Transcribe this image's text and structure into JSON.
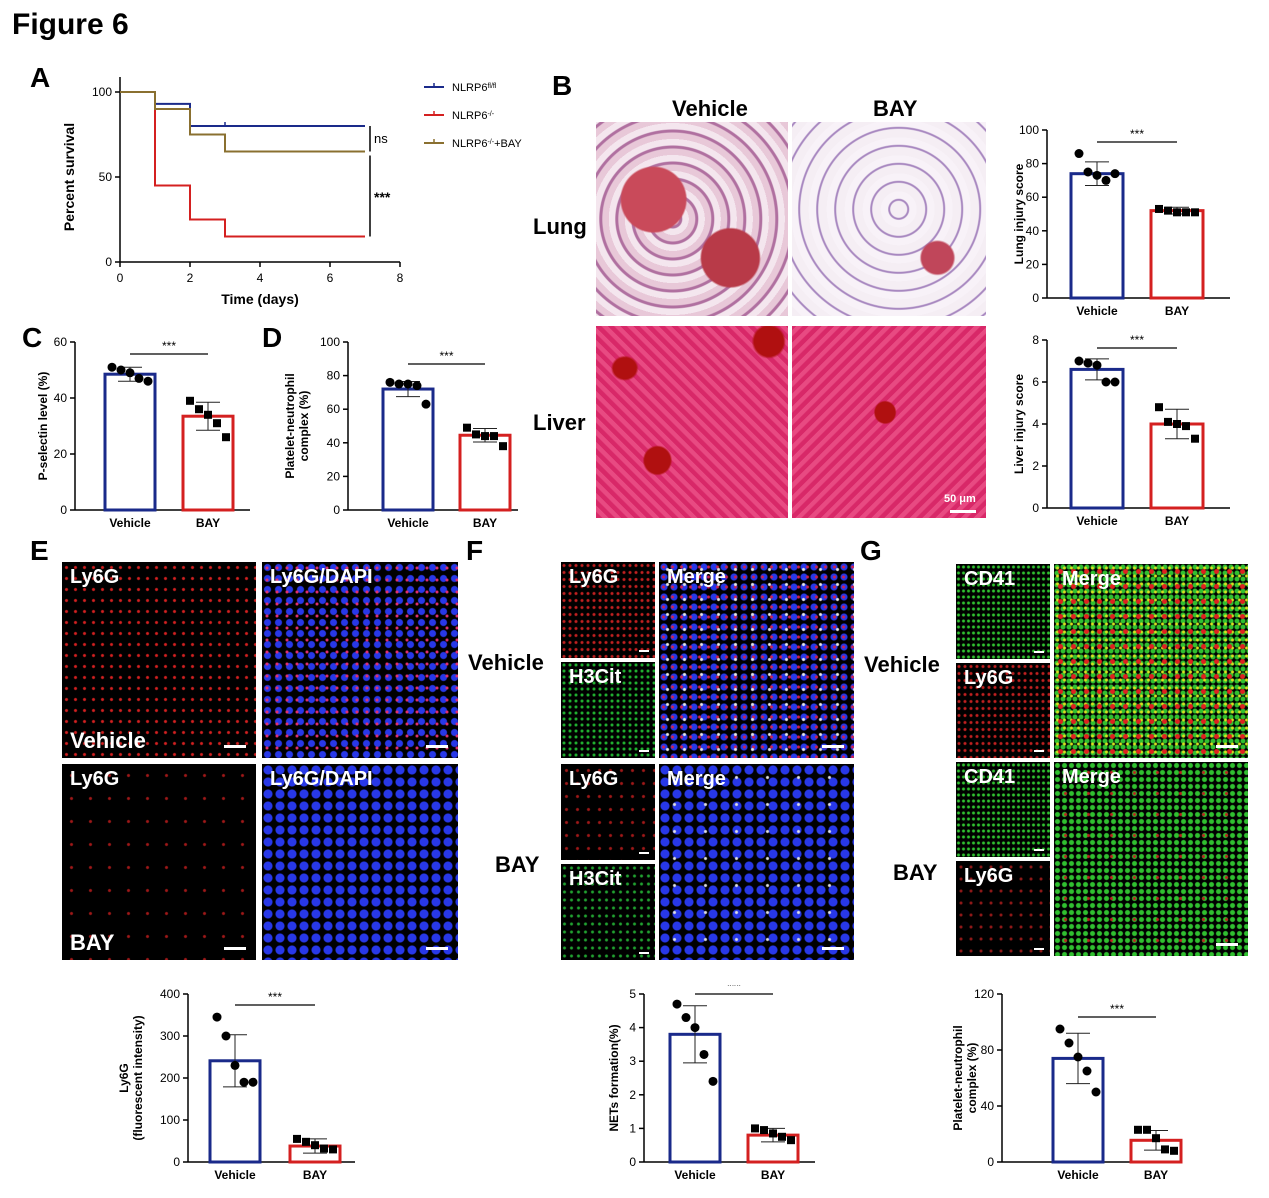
{
  "figure_title": "Figure 6",
  "panel_labels": {
    "A": "A",
    "B": "B",
    "C": "C",
    "D": "D",
    "E": "E",
    "F": "F",
    "G": "G"
  },
  "colors": {
    "blue": "#1a2a8a",
    "red": "#d42020",
    "olive": "#8a7030",
    "black": "#000000"
  },
  "panelB": {
    "col_labels": [
      "Vehicle",
      "BAY"
    ],
    "row_labels": [
      "Lung",
      "Liver"
    ],
    "scale_bar": "50 μm"
  },
  "panelE": {
    "tiles": [
      {
        "label": "Ly6G",
        "bottom": "Vehicle"
      },
      {
        "label": "Ly6G/DAPI",
        "bottom": ""
      },
      {
        "label": "Ly6G",
        "bottom": "BAY"
      },
      {
        "label": "Ly6G/DAPI",
        "bottom": ""
      }
    ]
  },
  "panelF": {
    "row_labels": [
      "Vehicle",
      "BAY"
    ],
    "tiles": [
      "Ly6G",
      "H3Cit",
      "Merge",
      "Ly6G",
      "H3Cit",
      "Merge"
    ]
  },
  "panelG": {
    "row_labels": [
      "Vehicle",
      "BAY"
    ],
    "tiles": [
      "CD41",
      "Ly6G",
      "Merge",
      "CD41",
      "Ly6G",
      "Merge"
    ]
  },
  "chart_data": [
    {
      "id": "A",
      "type": "line",
      "subtype": "kaplan-meier",
      "xlabel": "Time (days)",
      "ylabel": "Percent survival",
      "xlim": [
        0,
        8
      ],
      "ylim": [
        0,
        100
      ],
      "xticks": [
        "0",
        "2",
        "4",
        "6",
        "8"
      ],
      "yticks": [
        "0",
        "50",
        "100"
      ],
      "series": [
        {
          "name": "NLRP6",
          "sup": "fl/fl",
          "suffix": "",
          "color": "#1a2a8a",
          "steps": [
            [
              0,
              100
            ],
            [
              1,
              100
            ],
            [
              1,
              93
            ],
            [
              2,
              93
            ],
            [
              2,
              80
            ],
            [
              7,
              80
            ]
          ]
        },
        {
          "name": "NLRP6",
          "sup": "-/-",
          "suffix": "",
          "color": "#d42020",
          "steps": [
            [
              0,
              100
            ],
            [
              1,
              100
            ],
            [
              1,
              45
            ],
            [
              2,
              45
            ],
            [
              2,
              25
            ],
            [
              3,
              25
            ],
            [
              3,
              15
            ],
            [
              7,
              15
            ]
          ]
        },
        {
          "name": "NLRP6",
          "sup": "-/-",
          "suffix": "+BAY",
          "color": "#8a7030",
          "steps": [
            [
              0,
              100
            ],
            [
              1,
              100
            ],
            [
              1,
              90
            ],
            [
              2,
              90
            ],
            [
              2,
              75
            ],
            [
              3,
              75
            ],
            [
              3,
              65
            ],
            [
              7,
              65
            ]
          ]
        }
      ],
      "annotations": [
        "ns",
        "***"
      ]
    },
    {
      "id": "B-lung",
      "type": "bar",
      "ylabel": "Lung injury score",
      "categories": [
        "Vehicle",
        "BAY"
      ],
      "values": [
        74,
        52
      ],
      "errors": [
        7,
        2
      ],
      "ylim": [
        0,
        100
      ],
      "yticks": [
        "0",
        "20",
        "40",
        "60",
        "80",
        "100"
      ],
      "points": [
        [
          86,
          75,
          73,
          70,
          74
        ],
        [
          53,
          52,
          51,
          51,
          51
        ]
      ],
      "markers": [
        "circle",
        "square"
      ],
      "significance": "***"
    },
    {
      "id": "B-liver",
      "type": "bar",
      "ylabel": "Liver injury score",
      "categories": [
        "Vehicle",
        "BAY"
      ],
      "values": [
        6.6,
        4.0
      ],
      "errors": [
        0.5,
        0.7
      ],
      "ylim": [
        0,
        8
      ],
      "yticks": [
        "0",
        "2",
        "4",
        "6",
        "8"
      ],
      "points": [
        [
          7.0,
          6.9,
          6.8,
          6.0,
          6.0
        ],
        [
          4.8,
          4.1,
          4.0,
          3.9,
          3.3
        ]
      ],
      "markers": [
        "circle",
        "square"
      ],
      "significance": "***"
    },
    {
      "id": "C",
      "type": "bar",
      "ylabel": "P-selectin level (%)",
      "categories": [
        "Vehicle",
        "BAY"
      ],
      "values": [
        48.5,
        33.5
      ],
      "errors": [
        2.5,
        5.0
      ],
      "ylim": [
        0,
        60
      ],
      "yticks": [
        "0",
        "20",
        "40",
        "60"
      ],
      "points": [
        [
          51,
          50,
          49,
          47,
          46
        ],
        [
          39,
          36,
          34,
          31,
          26
        ]
      ],
      "markers": [
        "circle",
        "square"
      ],
      "significance": "***"
    },
    {
      "id": "D",
      "type": "bar",
      "ylabel": "Platelet-neutrophil complex (%)",
      "categories": [
        "Vehicle",
        "BAY"
      ],
      "values": [
        72,
        44.5
      ],
      "errors": [
        4.5,
        4
      ],
      "ylim": [
        0,
        100
      ],
      "yticks": [
        "0",
        "20",
        "40",
        "60",
        "80",
        "100"
      ],
      "points": [
        [
          76,
          75,
          75,
          74,
          63
        ],
        [
          49,
          45,
          44,
          44,
          38
        ]
      ],
      "markers": [
        "circle",
        "square"
      ],
      "significance": "***"
    },
    {
      "id": "E",
      "type": "bar",
      "ylabel": "Ly6G (fluorescent intensity)",
      "categories": [
        "Vehicle",
        "BAY"
      ],
      "values": [
        241,
        38
      ],
      "errors": [
        62,
        17
      ],
      "ylim": [
        0,
        400
      ],
      "yticks": [
        "0",
        "100",
        "200",
        "300",
        "400"
      ],
      "points": [
        [
          345,
          300,
          230,
          190,
          190
        ],
        [
          55,
          48,
          40,
          32,
          30
        ]
      ],
      "markers": [
        "circle",
        "square"
      ],
      "significance": "***"
    },
    {
      "id": "F",
      "type": "bar",
      "ylabel": "NETs formation(%)",
      "categories": [
        "Vehicle",
        "BAY"
      ],
      "values": [
        3.8,
        0.8
      ],
      "errors": [
        0.85,
        0.2
      ],
      "ylim": [
        0,
        5
      ],
      "yticks": [
        "0",
        "1",
        "2",
        "3",
        "4",
        "5"
      ],
      "points": [
        [
          4.7,
          4.3,
          4.0,
          3.2,
          2.4
        ],
        [
          1.0,
          0.95,
          0.85,
          0.75,
          0.65
        ]
      ],
      "markers": [
        "circle",
        "square"
      ],
      "significance": "***"
    },
    {
      "id": "G",
      "type": "bar",
      "ylabel": "Platelet-neutrophil complex (%)",
      "categories": [
        "Vehicle",
        "BAY"
      ],
      "values": [
        74,
        15.5
      ],
      "errors": [
        18,
        7
      ],
      "ylim": [
        0,
        120
      ],
      "yticks": [
        "0",
        "40",
        "80",
        "120"
      ],
      "points": [
        [
          95,
          85,
          75,
          65,
          50
        ],
        [
          23,
          23,
          17,
          9,
          8
        ]
      ],
      "markers": [
        "circle",
        "square"
      ],
      "significance": "***"
    }
  ]
}
